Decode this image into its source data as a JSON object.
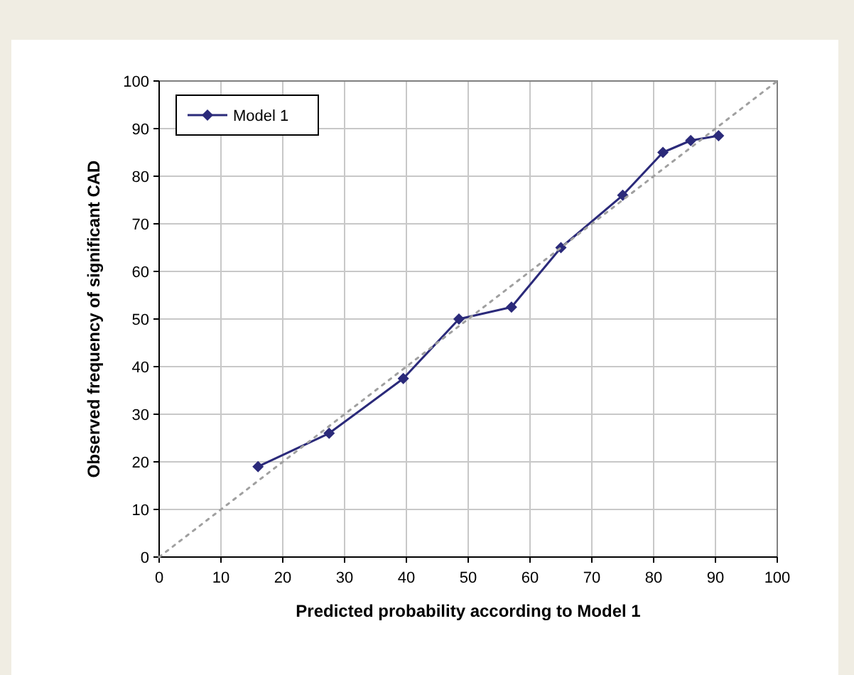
{
  "chart_data": {
    "type": "line",
    "xlabel": "Predicted probability according to Model 1",
    "ylabel": "Observed frequency of significant CAD",
    "x": [
      16,
      27.5,
      39.5,
      48.5,
      57,
      65,
      75,
      81.5,
      86,
      90.5
    ],
    "series": [
      {
        "name": "Model 1",
        "color": "#2b2a7a",
        "values": [
          19,
          26,
          37.5,
          50,
          52.5,
          65,
          76,
          85,
          87.5,
          88.5
        ],
        "marker": "diamond",
        "line_style": "solid"
      },
      {
        "type": "line",
        "x": [
          0,
          100
        ],
        "color": "#a0a0a0",
        "values": [
          0,
          100
        ],
        "marker": "none",
        "line_style": "dotted"
      }
    ],
    "xlim": [
      0,
      100
    ],
    "ylim": [
      0,
      100
    ],
    "xticks": [
      0,
      10,
      20,
      30,
      40,
      50,
      60,
      70,
      80,
      90,
      100
    ],
    "yticks": [
      0,
      10,
      20,
      30,
      40,
      50,
      60,
      70,
      80,
      90,
      100
    ],
    "grid": true,
    "legend": "top left"
  }
}
